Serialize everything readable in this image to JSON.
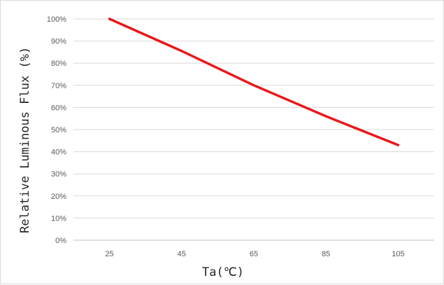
{
  "chart_data": {
    "type": "line",
    "xlabel": "Ta(℃)",
    "ylabel": "Relative Luminous Flux (%)",
    "x": [
      25,
      45,
      65,
      85,
      105
    ],
    "xticks": [
      "25",
      "45",
      "65",
      "85",
      "105"
    ],
    "yticks": [
      "0%",
      "10%",
      "20%",
      "30%",
      "40%",
      "50%",
      "60%",
      "70%",
      "80%",
      "90%",
      "100%"
    ],
    "ylim": [
      0,
      100
    ],
    "grid": true,
    "legend": "none",
    "series": [
      {
        "values": [
          100,
          85.5,
          70,
          56,
          43
        ],
        "color": "#e8181b"
      }
    ]
  }
}
